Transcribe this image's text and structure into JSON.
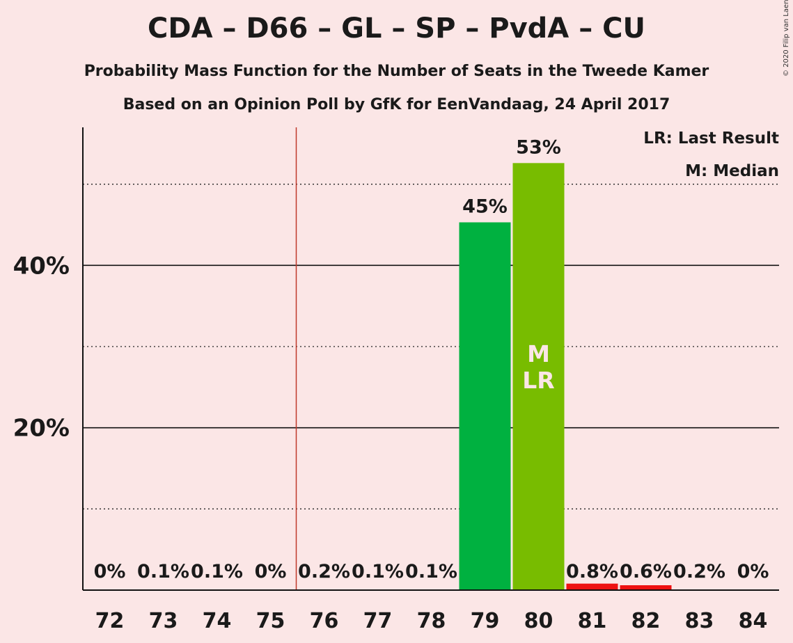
{
  "title": "CDA – D66 – GL – SP – PvdA – CU",
  "subtitle": "Probability Mass Function for the Number of Seats in the Tweede Kamer",
  "subtitle2": "Based on an Opinion Poll by GfK for EenVandaag, 24 April 2017",
  "copyright": "© 2020 Filip van Laenen",
  "legend": {
    "lr": "LR: Last Result",
    "m": "M: Median"
  },
  "chart_data": {
    "type": "bar",
    "categories": [
      "72",
      "73",
      "74",
      "75",
      "76",
      "77",
      "78",
      "79",
      "80",
      "81",
      "82",
      "83",
      "84"
    ],
    "values": [
      0,
      0.1,
      0.1,
      0,
      0.2,
      0.1,
      0.1,
      45.3,
      52.6,
      0.8,
      0.6,
      0.2,
      0
    ],
    "value_labels": [
      "0%",
      "0.1%",
      "0.1%",
      "0%",
      "0.2%",
      "0.1%",
      "0.1%",
      "45%",
      "53%",
      "0.8%",
      "0.6%",
      "0.2%",
      "0%"
    ],
    "bar_colors": [
      "#00b140",
      "#00b140",
      "#00b140",
      "#00b140",
      "#00b140",
      "#00b140",
      "#00b140",
      "#00b140",
      "#78bc00",
      "#ee1111",
      "#ee1111",
      "#ee1111",
      "#ee1111"
    ],
    "ylim": [
      0,
      57
    ],
    "yticks": [
      20,
      40
    ],
    "ytick_labels": [
      "20%",
      "40%"
    ],
    "minor_gridlines": [
      10,
      30,
      50
    ],
    "majority_line_after": "75",
    "majority_line_color": "#c0392b",
    "median_category": "80",
    "last_result_category": "80",
    "bar_markers": [
      "M",
      "LR"
    ]
  }
}
